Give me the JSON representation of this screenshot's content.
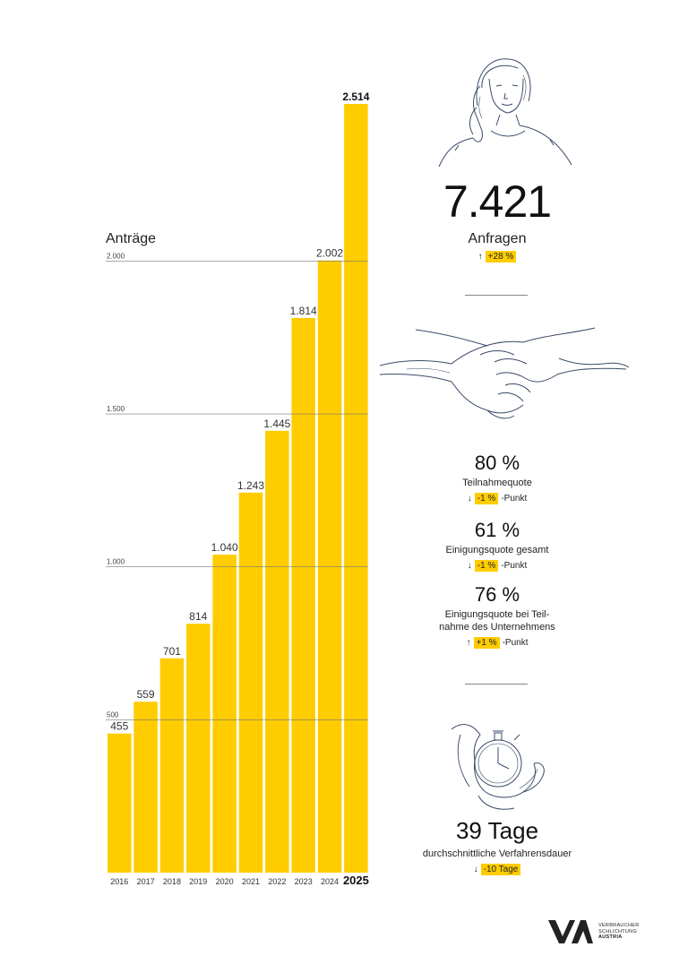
{
  "chart_data": {
    "type": "bar",
    "ylabel": "Anträge",
    "categories": [
      "2016",
      "2017",
      "2018",
      "2019",
      "2020",
      "2021",
      "2022",
      "2023",
      "2024",
      "2025"
    ],
    "values": [
      455,
      559,
      701,
      814,
      1040,
      1243,
      1445,
      1814,
      2002,
      2514
    ],
    "value_labels": [
      "455",
      "559",
      "701",
      "814",
      "1.040",
      "1.243",
      "1.445",
      "1.814",
      "2.002",
      "2.514"
    ],
    "yticks": [
      500,
      1000,
      1500,
      2000
    ],
    "ytick_labels": [
      "500",
      "1.000",
      "1.500",
      "2.000"
    ],
    "ylim": [
      0,
      2514
    ],
    "grid": true,
    "bar_color": "#ffcc00"
  },
  "stats": {
    "inquiries": {
      "value": "7.421",
      "label": "Anfragen",
      "change": "+28 %",
      "direction": "up"
    },
    "participation": {
      "value": "80 %",
      "label": "Teilnahmequote",
      "change": "-1 %",
      "suffix": "-Punkt",
      "direction": "down"
    },
    "agreement_total": {
      "value": "61 %",
      "label": "Einigungsquote gesamt",
      "change": "-1 %",
      "suffix": "-Punkt",
      "direction": "down"
    },
    "agreement_participation": {
      "value": "76 %",
      "label_line1": "Einigungsquote bei Teil-",
      "label_line2": "nahme des Unternehmens",
      "change": "+1 %",
      "suffix": "-Punkt",
      "direction": "up"
    },
    "duration": {
      "value": "39 Tage",
      "label": "durchschnittliche Verfahrensdauer",
      "change": "-10 Tage",
      "direction": "down"
    }
  },
  "logo": {
    "line1": "VERBRAUCHER",
    "line2": "SCHLICHTUNG",
    "line3": "AUSTRIA"
  },
  "icons": [
    "woman-on-phone-illustration",
    "handshake-illustration",
    "stopwatch-in-hand-illustration",
    "up-arrow-icon",
    "down-arrow-icon"
  ],
  "colors": {
    "accent": "#ffcc00"
  }
}
